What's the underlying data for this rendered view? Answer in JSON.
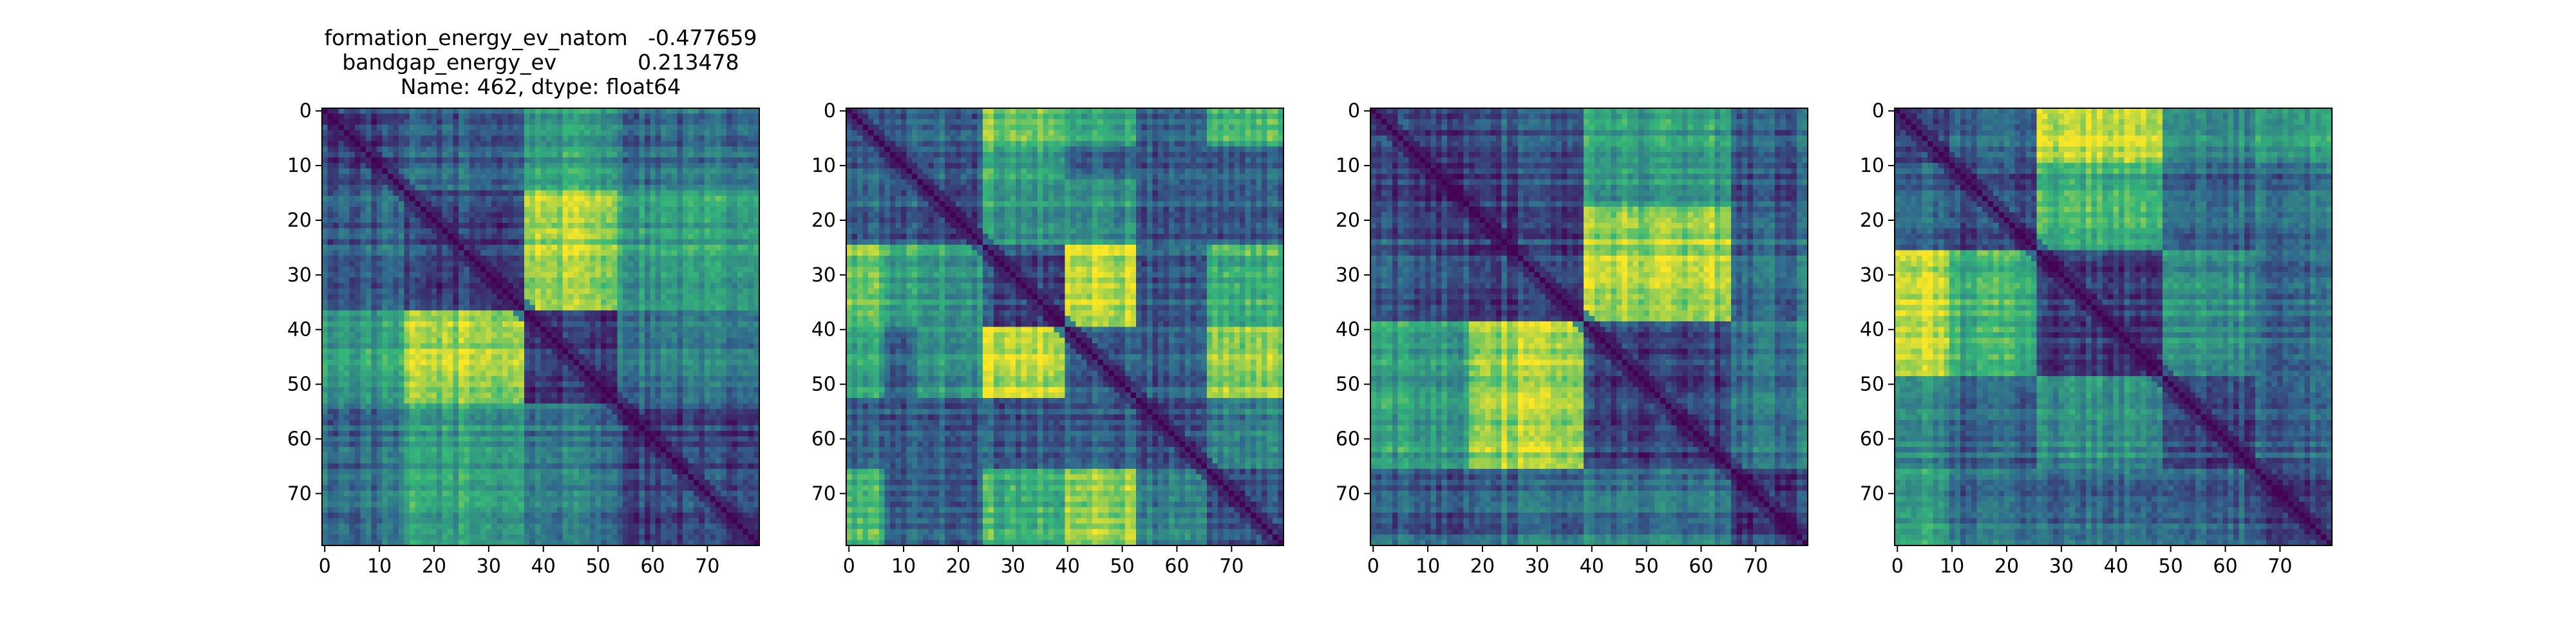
{
  "title_lines": [
    "formation_energy_ev_natom   -0.477659",
    "bandgap_energy_ev            0.213478",
    "Name: 462, dtype: float64"
  ],
  "colormap": [
    "#440154",
    "#31688e",
    "#35b779",
    "#fde725"
  ],
  "chart_data": [
    {
      "type": "heatmap",
      "title": "formation_energy_ev_natom   -0.477659\nbandgap_energy_ev            0.213478\nName: 462, dtype: float64",
      "size": 80,
      "xticks": [
        0,
        10,
        20,
        30,
        40,
        50,
        60,
        70
      ],
      "yticks": [
        0,
        10,
        20,
        30,
        40,
        50,
        60,
        70
      ],
      "xlim": [
        0,
        79
      ],
      "ylim": [
        79,
        0
      ],
      "diagonal_value": 0,
      "blocks": [
        [
          0,
          15
        ],
        [
          15,
          37
        ],
        [
          37,
          54
        ],
        [
          54,
          80
        ]
      ],
      "block_pair_values": [
        {
          "rows": [
            0,
            15
          ],
          "cols": [
            15,
            37
          ],
          "value": 0.3
        },
        {
          "rows": [
            0,
            15
          ],
          "cols": [
            37,
            54
          ],
          "value": 0.55
        },
        {
          "rows": [
            0,
            15
          ],
          "cols": [
            54,
            80
          ],
          "value": 0.35
        },
        {
          "rows": [
            15,
            37
          ],
          "cols": [
            37,
            54
          ],
          "value": 0.85
        },
        {
          "rows": [
            15,
            37
          ],
          "cols": [
            54,
            80
          ],
          "value": 0.55
        },
        {
          "rows": [
            37,
            54
          ],
          "cols": [
            54,
            80
          ],
          "value": 0.4
        }
      ],
      "within_block_value": 0.2
    },
    {
      "type": "heatmap",
      "title": "",
      "size": 80,
      "xticks": [
        0,
        10,
        20,
        30,
        40,
        50,
        60,
        70
      ],
      "yticks": [
        0,
        10,
        20,
        30,
        40,
        50,
        60,
        70
      ],
      "xlim": [
        0,
        79
      ],
      "ylim": [
        79,
        0
      ],
      "diagonal_value": 0,
      "blocks": [
        [
          0,
          7
        ],
        [
          7,
          13
        ],
        [
          13,
          25
        ],
        [
          25,
          40
        ],
        [
          40,
          53
        ],
        [
          53,
          66
        ],
        [
          66,
          80
        ]
      ],
      "block_pair_values": [
        {
          "rows": [
            0,
            7
          ],
          "cols": [
            25,
            40
          ],
          "value": 0.75
        },
        {
          "rows": [
            0,
            7
          ],
          "cols": [
            66,
            80
          ],
          "value": 0.65
        },
        {
          "rows": [
            7,
            13
          ],
          "cols": [
            25,
            40
          ],
          "value": 0.6
        },
        {
          "rows": [
            13,
            25
          ],
          "cols": [
            25,
            40
          ],
          "value": 0.55
        },
        {
          "rows": [
            25,
            40
          ],
          "cols": [
            40,
            53
          ],
          "value": 0.9
        },
        {
          "rows": [
            25,
            40
          ],
          "cols": [
            66,
            80
          ],
          "value": 0.65
        },
        {
          "rows": [
            0,
            7
          ],
          "cols": [
            40,
            53
          ],
          "value": 0.55
        },
        {
          "rows": [
            40,
            53
          ],
          "cols": [
            66,
            80
          ],
          "value": 0.8
        },
        {
          "rows": [
            13,
            25
          ],
          "cols": [
            40,
            53
          ],
          "value": 0.5
        },
        {
          "rows": [
            53,
            66
          ],
          "cols": [
            66,
            80
          ],
          "value": 0.45
        }
      ],
      "within_block_value": 0.25
    },
    {
      "type": "heatmap",
      "title": "",
      "size": 80,
      "xticks": [
        0,
        10,
        20,
        30,
        40,
        50,
        60,
        70
      ],
      "yticks": [
        0,
        10,
        20,
        30,
        40,
        50,
        60,
        70
      ],
      "xlim": [
        0,
        79
      ],
      "ylim": [
        79,
        0
      ],
      "diagonal_value": 0,
      "blocks": [
        [
          0,
          18
        ],
        [
          18,
          39
        ],
        [
          39,
          66
        ],
        [
          66,
          80
        ]
      ],
      "block_pair_values": [
        {
          "rows": [
            0,
            18
          ],
          "cols": [
            18,
            39
          ],
          "value": 0.25
        },
        {
          "rows": [
            0,
            18
          ],
          "cols": [
            39,
            66
          ],
          "value": 0.55
        },
        {
          "rows": [
            0,
            18
          ],
          "cols": [
            66,
            80
          ],
          "value": 0.3
        },
        {
          "rows": [
            18,
            39
          ],
          "cols": [
            39,
            66
          ],
          "value": 0.85
        },
        {
          "rows": [
            18,
            39
          ],
          "cols": [
            66,
            80
          ],
          "value": 0.35
        },
        {
          "rows": [
            39,
            66
          ],
          "cols": [
            66,
            80
          ],
          "value": 0.4
        }
      ],
      "within_block_value": 0.2
    },
    {
      "type": "heatmap",
      "title": "",
      "size": 80,
      "xticks": [
        0,
        10,
        20,
        30,
        40,
        50,
        60,
        70
      ],
      "yticks": [
        0,
        10,
        20,
        30,
        40,
        50,
        60,
        70
      ],
      "xlim": [
        0,
        79
      ],
      "ylim": [
        79,
        0
      ],
      "diagonal_value": 0,
      "blocks": [
        [
          0,
          10
        ],
        [
          10,
          26
        ],
        [
          26,
          49
        ],
        [
          49,
          66
        ],
        [
          66,
          80
        ]
      ],
      "block_pair_values": [
        {
          "rows": [
            0,
            10
          ],
          "cols": [
            10,
            26
          ],
          "value": 0.3
        },
        {
          "rows": [
            0,
            10
          ],
          "cols": [
            26,
            49
          ],
          "value": 0.9
        },
        {
          "rows": [
            0,
            10
          ],
          "cols": [
            49,
            66
          ],
          "value": 0.45
        },
        {
          "rows": [
            0,
            10
          ],
          "cols": [
            66,
            80
          ],
          "value": 0.55
        },
        {
          "rows": [
            10,
            26
          ],
          "cols": [
            26,
            49
          ],
          "value": 0.65
        },
        {
          "rows": [
            10,
            26
          ],
          "cols": [
            49,
            66
          ],
          "value": 0.3
        },
        {
          "rows": [
            10,
            26
          ],
          "cols": [
            66,
            80
          ],
          "value": 0.35
        },
        {
          "rows": [
            26,
            49
          ],
          "cols": [
            49,
            66
          ],
          "value": 0.5
        },
        {
          "rows": [
            26,
            49
          ],
          "cols": [
            66,
            80
          ],
          "value": 0.35
        },
        {
          "rows": [
            49,
            66
          ],
          "cols": [
            66,
            80
          ],
          "value": 0.3
        }
      ],
      "within_block_value": 0.2
    }
  ]
}
